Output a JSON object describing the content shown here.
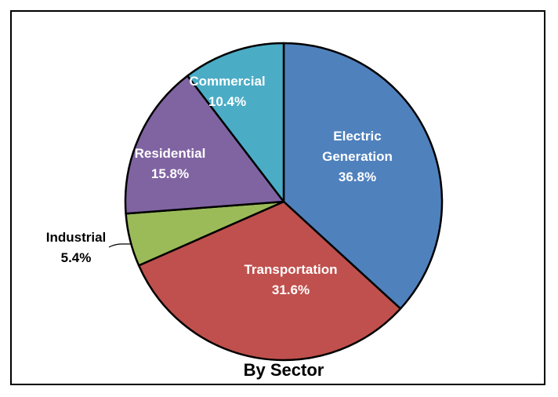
{
  "chart_data": {
    "type": "pie",
    "title": "By Sector",
    "start_angle_deg": 0,
    "direction": "clockwise",
    "slices": [
      {
        "name": "Electric Generation",
        "name_lines": [
          "Electric",
          "Generation"
        ],
        "value": 36.8,
        "label": "36.8%",
        "color": "#4F81BD",
        "label_color": "#FFFFFF"
      },
      {
        "name": "Transportation",
        "name_lines": [
          "Transportation"
        ],
        "value": 31.6,
        "label": "31.6%",
        "color": "#C0504D",
        "label_color": "#FFFFFF"
      },
      {
        "name": "Industrial",
        "name_lines": [
          "Industrial"
        ],
        "value": 5.4,
        "label": "5.4%",
        "color": "#9BBB59",
        "label_color": "#000000"
      },
      {
        "name": "Residential",
        "name_lines": [
          "Residential"
        ],
        "value": 15.8,
        "label": "15.8%",
        "color": "#8064A2",
        "label_color": "#FFFFFF"
      },
      {
        "name": "Commercial",
        "name_lines": [
          "Commercial"
        ],
        "value": 10.4,
        "label": "10.4%",
        "color": "#4BACC6",
        "label_color": "#FFFFFF"
      }
    ]
  }
}
